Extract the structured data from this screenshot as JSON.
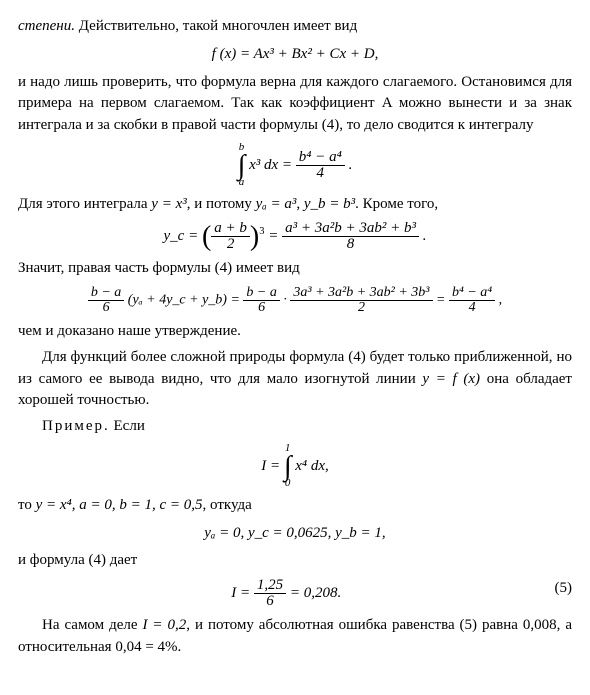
{
  "p1_a": "степени.",
  "p1_b": " Действительно, такой многочлен имеет вид",
  "eq1": "f (x) = Ax³ + Bx² + Cx + D,",
  "p2": "и надо лишь проверить, что формула верна для каждого слагаемого. Остановимся для примера на первом слагаемом. Так как коэффициент A можно вынести и за знак интеграла и за скобки в правой части формулы (4), то дело сводится к интегралу",
  "int1_upper": "b",
  "int1_lower": "a",
  "int1_body": "x³ dx",
  "int1_rhs_num": "b⁴ − a⁴",
  "int1_rhs_den": "4",
  "p3_a": "Для этого интеграла ",
  "p3_b": "y = x³",
  "p3_c": ", и потому ",
  "p3_d": "yₐ = a³",
  "p3_d2": "y_b = b³",
  "p3_e": ". Кроме того,",
  "eq3_lhs": "y_c =",
  "eq3_inner_num": "a + b",
  "eq3_inner_den": "2",
  "eq3_exp": "3",
  "eq3_rhs_num": "a³ + 3a²b + 3ab² + b³",
  "eq3_rhs_den": "8",
  "p4": "Значит, правая часть формулы (4) имеет вид",
  "eq4_f1_num": "b − a",
  "eq4_f1_den": "6",
  "eq4_mid": "(yₐ + 4y_c + y_b) =",
  "eq4_f2_num": "b − a",
  "eq4_f2_den": "6",
  "eq4_f3_num": "3a³ + 3a²b + 3ab² + 3b³",
  "eq4_f3_den": "2",
  "eq4_f4_num": "b⁴ − a⁴",
  "eq4_f4_den": "4",
  "p5": "чем и доказано наше утверждение.",
  "p6_a": "Для функций более сложной природы формула (4) будет только приближенной, но из самого ее вывода видно, что для мало изогнутой линии ",
  "p6_b": "y = f (x)",
  "p6_c": " она обладает хорошей точностью.",
  "p7_a": "Пример.",
  "p7_b": " Если",
  "int2_upper": "1",
  "int2_lower": "0",
  "int2_lhs": "I =",
  "int2_body": "x⁴ dx,",
  "p8_a": "то ",
  "p8_b": "y = x⁴",
  "p8_c": ", a = 0, b = 1, c = 0,5",
  "p8_d": ", откуда",
  "eq6": "yₐ = 0,   y_c = 0,0625,   y_b = 1,",
  "p9": "и формула (4) дает",
  "eq7_lhs": "I =",
  "eq7_num": "1,25",
  "eq7_den": "6",
  "eq7_rhs": "= 0,208.",
  "eqnum": "(5)",
  "p10_a": "На самом деле ",
  "p10_b": "I = 0,2",
  "p10_c": ", и потому абсолютная ошибка равенства (5) равна 0,008, а относительная 0,04 = 4%."
}
